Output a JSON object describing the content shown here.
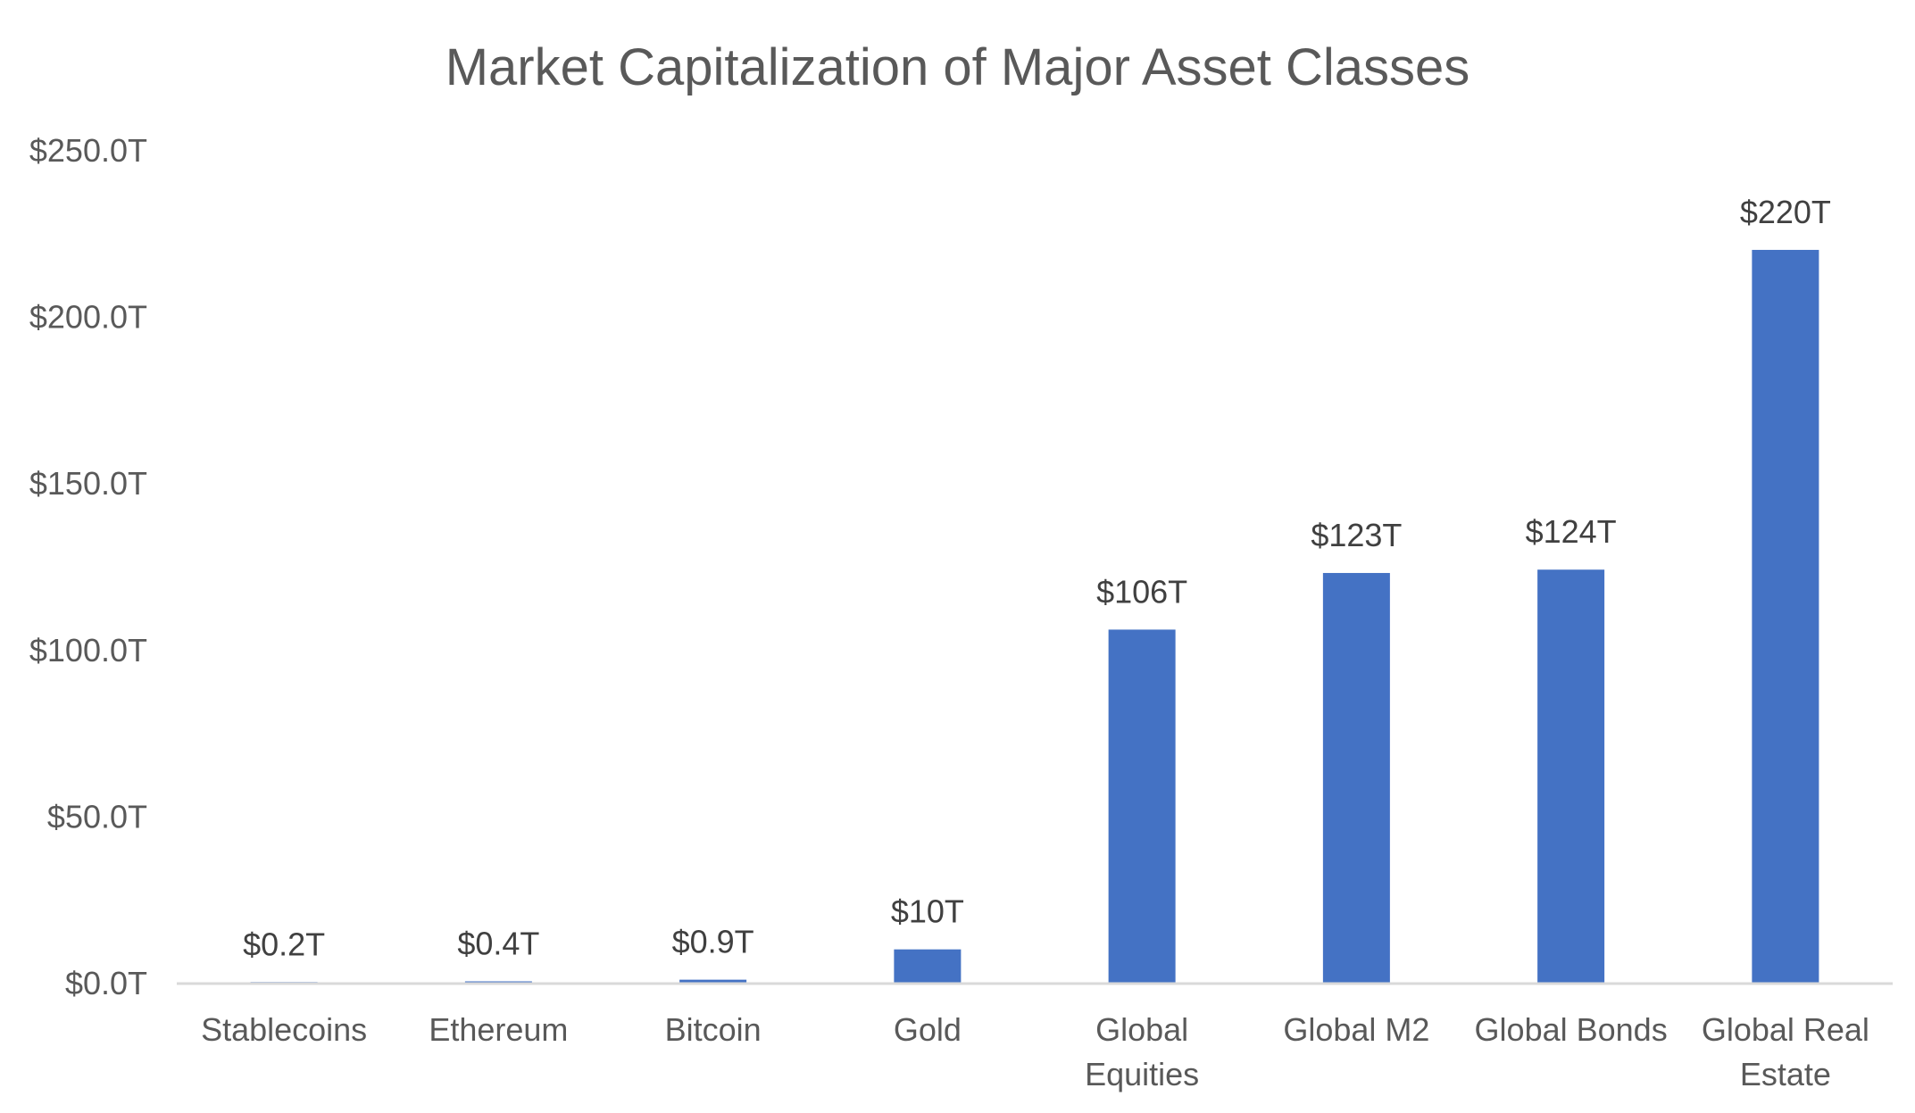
{
  "chart_data": {
    "type": "bar",
    "title": "Market Capitalization of Major Asset Classes",
    "xlabel": "",
    "ylabel": "",
    "categories": [
      [
        "Stablecoins"
      ],
      [
        "Ethereum"
      ],
      [
        "Bitcoin"
      ],
      [
        "Gold"
      ],
      [
        "Global",
        "Equities"
      ],
      [
        "Global M2"
      ],
      [
        "Global Bonds"
      ],
      [
        "Global Real",
        "Estate"
      ]
    ],
    "values": [
      0.2,
      0.4,
      0.9,
      10,
      106,
      123,
      124,
      220
    ],
    "data_labels": [
      "$0.2T",
      "$0.4T",
      "$0.9T",
      "$10T",
      "$106T",
      "$123T",
      "$124T",
      "$220T"
    ],
    "ylim": [
      0,
      250
    ],
    "yticks": [
      0,
      50,
      100,
      150,
      200,
      250
    ],
    "ytick_labels": [
      "$0.0T",
      "$50.0T",
      "$100.0T",
      "$150.0T",
      "$200.0T",
      "$250.0T"
    ],
    "bar_color": "#4472C4",
    "axis_color": "#D9D9D9",
    "grid": false,
    "legend": "none"
  }
}
